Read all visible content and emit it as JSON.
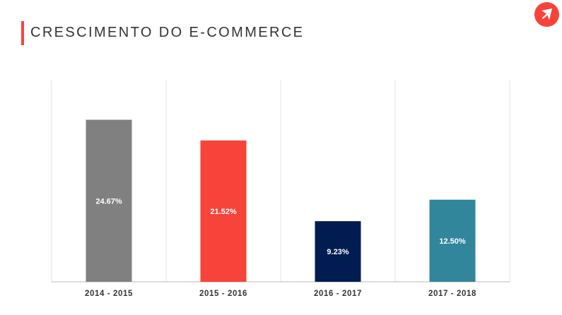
{
  "header": {
    "title": "CRESCIMENTO DO E-COMMERCE",
    "accent_color": "#f8433a",
    "logo_icon": "arrow-logo-icon"
  },
  "chart_data": {
    "type": "bar",
    "title": "CRESCIMENTO DO E-COMMERCE",
    "xlabel": "",
    "ylabel": "",
    "categories": [
      "2014 - 2015",
      "2015 - 2016",
      "2016 - 2017",
      "2017 - 2018"
    ],
    "values": [
      24.67,
      21.52,
      9.23,
      12.5
    ],
    "value_labels": [
      "24.67%",
      "21.52%",
      "9.23%",
      "12.50%"
    ],
    "colors": [
      "#808080",
      "#f8433a",
      "#001c50",
      "#31869c"
    ],
    "ylim": [
      0,
      30
    ],
    "grid": "vertical separators",
    "legend": "none"
  }
}
